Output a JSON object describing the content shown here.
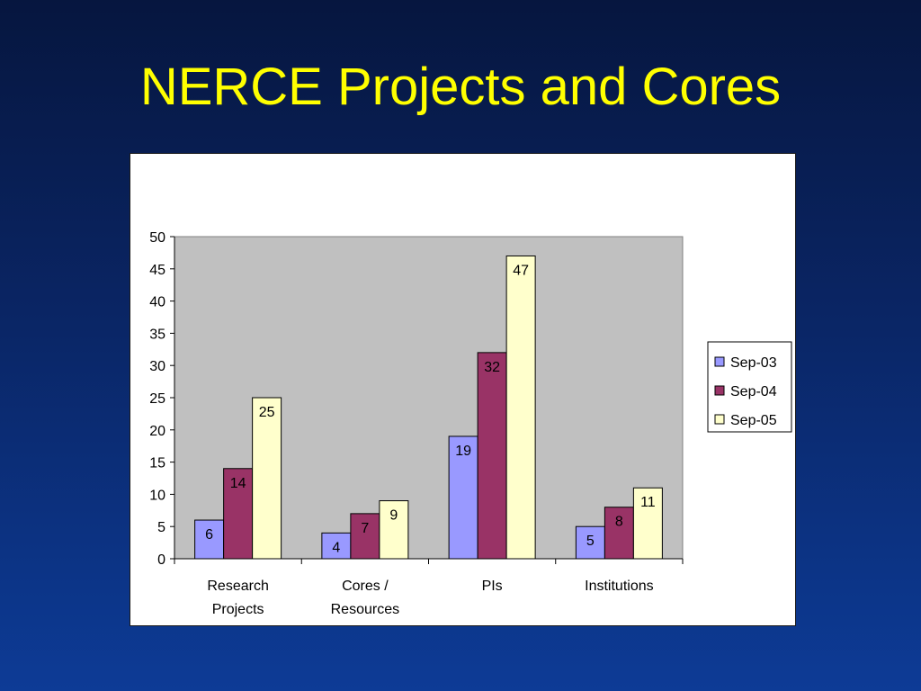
{
  "slide": {
    "title": "NERCE Projects and Cores"
  },
  "colors": {
    "title": "#ffff00",
    "plot_background": "#c0c0c0",
    "series": [
      "#9999ff",
      "#993366",
      "#ffffcc"
    ]
  },
  "chart_data": {
    "type": "bar",
    "categories": [
      [
        "Research",
        "Projects"
      ],
      [
        "Cores /",
        "Resources"
      ],
      [
        "PIs"
      ],
      [
        "Institutions"
      ]
    ],
    "series": [
      {
        "name": "Sep-03",
        "values": [
          6,
          4,
          19,
          5
        ]
      },
      {
        "name": "Sep-04",
        "values": [
          14,
          7,
          32,
          8
        ]
      },
      {
        "name": "Sep-05",
        "values": [
          25,
          9,
          47,
          11
        ]
      }
    ],
    "ylim": [
      0,
      50
    ],
    "yticks": [
      0,
      5,
      10,
      15,
      20,
      25,
      30,
      35,
      40,
      45,
      50
    ],
    "grid": false,
    "legend_position": "right",
    "data_labels": true
  }
}
